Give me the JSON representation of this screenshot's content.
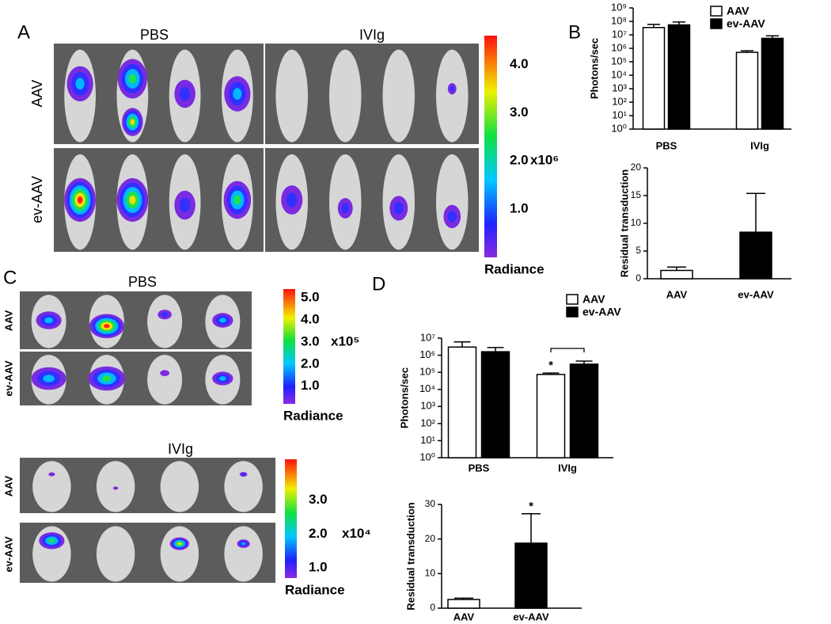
{
  "panel_labels": [
    "A",
    "B",
    "C",
    "D"
  ],
  "imaging": [
    {
      "columns": [
        "PBS",
        "IVIg"
      ],
      "rows": [
        "AAV",
        "ev-AAV"
      ],
      "colorbar": {
        "clim": [
          0,
          4.6
        ],
        "ticks": [
          {
            "value": 1,
            "label": "1.0"
          },
          {
            "value": 2,
            "label": "2.0"
          },
          {
            "value": 3,
            "label": "3.0"
          },
          {
            "value": 4,
            "label": "4.0"
          }
        ],
        "unit": "x10⁶",
        "label": "Radiance"
      }
    },
    {
      "title": "PBS",
      "rows": [
        "AAV",
        "ev-AAV"
      ],
      "colorbar": {
        "clim": [
          0.2,
          5.4
        ],
        "ticks": [
          {
            "value": 1,
            "label": "1.0"
          },
          {
            "value": 2,
            "label": "2.0"
          },
          {
            "value": 3,
            "label": "3.0"
          },
          {
            "value": 4,
            "label": "4.0"
          },
          {
            "value": 5,
            "label": "5.0"
          }
        ],
        "unit": "x10⁵",
        "label": "Radiance"
      }
    },
    {
      "title": "IVIg",
      "rows": [
        "AAV",
        "ev-AAV"
      ],
      "colorbar": {
        "clim": [
          0.7,
          4.2
        ],
        "ticks": [
          {
            "value": 1,
            "label": "1.0"
          },
          {
            "value": 2,
            "label": "2.0"
          },
          {
            "value": 3,
            "label": "3.0"
          }
        ],
        "unit": "x10⁴",
        "label": "Radiance"
      }
    }
  ],
  "chart_data": [
    {
      "type": "bar",
      "log_scale": true,
      "ylabel": "Photons/sec",
      "categories": [
        "PBS",
        "IVIg"
      ],
      "series": [
        {
          "name": "AAV",
          "color": "#ffffff",
          "values": [
            35000000,
            500000
          ],
          "errors": [
            25000000,
            150000
          ]
        },
        {
          "name": "ev-AAV",
          "color": "#000000",
          "values": [
            55000000,
            5500000
          ],
          "errors": [
            35000000,
            3000000
          ]
        }
      ],
      "ylim": [
        1,
        1000000000
      ],
      "yticks": [
        {
          "value": 1,
          "label": "10⁰"
        },
        {
          "value": 10,
          "label": "10¹"
        },
        {
          "value": 100,
          "label": "10²"
        },
        {
          "value": 1000,
          "label": "10³"
        },
        {
          "value": 10000,
          "label": "10⁴"
        },
        {
          "value": 100000,
          "label": "10⁵"
        },
        {
          "value": 1000000,
          "label": "10⁶"
        },
        {
          "value": 10000000,
          "label": "10⁷"
        },
        {
          "value": 100000000,
          "label": "10⁸"
        },
        {
          "value": 1000000000,
          "label": "10⁹"
        }
      ]
    },
    {
      "type": "bar",
      "ylabel": "Residual transduction",
      "categories": [
        "AAV",
        "ev-AAV"
      ],
      "values": [
        1.5,
        8.4
      ],
      "errors": [
        0.6,
        7
      ],
      "colors": [
        "#ffffff",
        "#000000"
      ],
      "ylim": [
        0,
        20
      ],
      "yticks": [
        0,
        5,
        10,
        15,
        20
      ]
    },
    {
      "type": "bar",
      "log_scale": true,
      "ylabel": "Photons/sec",
      "categories": [
        "PBS",
        "IVIg"
      ],
      "series": [
        {
          "name": "AAV",
          "color": "#ffffff",
          "values": [
            3000000,
            75000
          ],
          "errors": [
            3000000,
            15000
          ]
        },
        {
          "name": "ev-AAV",
          "color": "#000000",
          "values": [
            1600000,
            300000
          ],
          "errors": [
            1200000,
            150000
          ]
        }
      ],
      "ylim": [
        1,
        10000000
      ],
      "yticks": [
        {
          "value": 1,
          "label": "10⁰"
        },
        {
          "value": 10,
          "label": "10¹"
        },
        {
          "value": 100,
          "label": "10²"
        },
        {
          "value": 1000,
          "label": "10³"
        },
        {
          "value": 10000,
          "label": "10⁴"
        },
        {
          "value": 100000,
          "label": "10⁵"
        },
        {
          "value": 1000000,
          "label": "10⁶"
        },
        {
          "value": 10000000,
          "label": "10⁷"
        }
      ],
      "annotations": [
        "*"
      ]
    },
    {
      "type": "bar",
      "ylabel": "Residual transduction",
      "categories": [
        "AAV",
        "ev-AAV"
      ],
      "values": [
        2.5,
        18.8
      ],
      "errors": [
        0.4,
        8.5
      ],
      "colors": [
        "#ffffff",
        "#000000"
      ],
      "ylim": [
        0,
        30
      ],
      "yticks": [
        0,
        10,
        20,
        30
      ],
      "annotations": [
        "*"
      ]
    }
  ]
}
